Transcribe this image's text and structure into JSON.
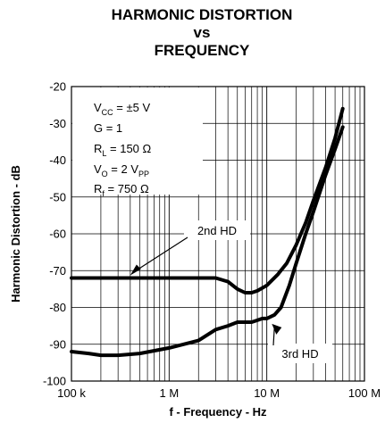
{
  "chart_data": {
    "type": "line",
    "title_lines": [
      "HARMONIC DISTORTION",
      "vs",
      "FREQUENCY"
    ],
    "xlabel": "f - Frequency - Hz",
    "ylabel": "Harmonic Distortion - dB",
    "x_scale": "log",
    "xlim": [
      100000,
      100000000
    ],
    "ylim": [
      -100,
      -20
    ],
    "x_ticks": [
      {
        "value": 100000,
        "label": "100 k"
      },
      {
        "value": 1000000,
        "label": "1 M"
      },
      {
        "value": 10000000,
        "label": "10 M"
      },
      {
        "value": 100000000,
        "label": "100 M"
      }
    ],
    "y_ticks": [
      {
        "value": -20,
        "label": "-20"
      },
      {
        "value": -30,
        "label": "-30"
      },
      {
        "value": -40,
        "label": "-40"
      },
      {
        "value": -50,
        "label": "-50"
      },
      {
        "value": -60,
        "label": "-60"
      },
      {
        "value": -70,
        "label": "-70"
      },
      {
        "value": -80,
        "label": "-80"
      },
      {
        "value": -90,
        "label": "-90"
      },
      {
        "value": -100,
        "label": "-100"
      }
    ],
    "grid": true,
    "conditions": [
      {
        "main": "V",
        "sub": "CC",
        "rest": " = ±5 V"
      },
      {
        "main": "G = 1",
        "sub": "",
        "rest": ""
      },
      {
        "main": "R",
        "sub": "L",
        "rest": " = 150 Ω"
      },
      {
        "main": "V",
        "sub": "O",
        "rest": " = 2 V",
        "sub2": "PP"
      },
      {
        "main": "R",
        "sub": "f",
        "rest": " = 750 Ω"
      }
    ],
    "series": [
      {
        "name": "2nd HD",
        "x": [
          100000,
          200000,
          500000,
          1000000,
          2000000,
          3000000,
          4000000,
          5000000,
          6000000,
          7000000,
          8000000,
          10000000,
          13000000,
          16000000,
          20000000,
          25000000,
          30000000,
          40000000,
          50000000,
          60000000
        ],
        "y": [
          -72,
          -72,
          -72,
          -72,
          -72,
          -72,
          -73,
          -75,
          -76,
          -76,
          -75.5,
          -74,
          -71,
          -68,
          -63,
          -57,
          -51,
          -42,
          -34,
          -26
        ]
      },
      {
        "name": "3rd HD",
        "x": [
          100000,
          150000,
          200000,
          300000,
          500000,
          1000000,
          2000000,
          3000000,
          4000000,
          5000000,
          6000000,
          7000000,
          8000000,
          9000000,
          10000000,
          12000000,
          14000000,
          17000000,
          20000000,
          25000000,
          30000000,
          40000000,
          50000000,
          60000000
        ],
        "y": [
          -92,
          -92.5,
          -93,
          -93,
          -92.5,
          -91,
          -89,
          -86,
          -85,
          -84,
          -84,
          -84,
          -83.5,
          -83,
          -83,
          -82,
          -80,
          -74,
          -68,
          -60,
          -54,
          -44,
          -37,
          -31
        ]
      }
    ],
    "callouts": [
      {
        "label": "2nd HD",
        "series": "2nd HD"
      },
      {
        "label": "3rd HD",
        "series": "3rd HD"
      }
    ]
  }
}
